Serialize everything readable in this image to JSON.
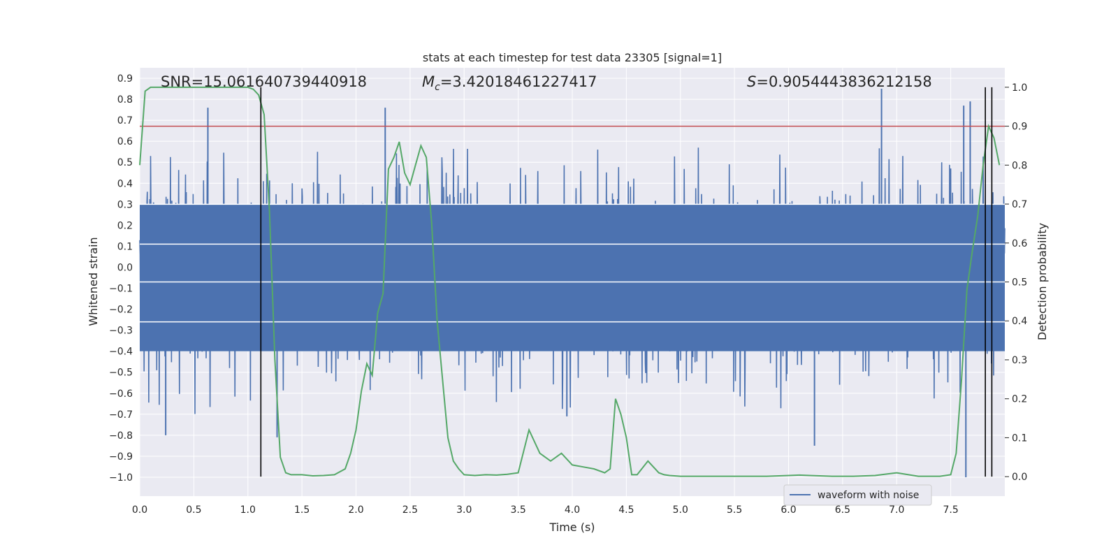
{
  "chart_data": {
    "type": "line",
    "title": "stats at each timestep for test data 23305 [signal=1]",
    "xlabel": "Time (s)",
    "ylabel_left": "Whitened strain",
    "ylabel_right": "Detection probability",
    "xlim": [
      0.0,
      8.0
    ],
    "ylim_left": [
      -1.09,
      0.95
    ],
    "ylim_right": [
      -0.05,
      1.05
    ],
    "x_ticks": [
      "0.0",
      "0.5",
      "1.0",
      "1.5",
      "2.0",
      "2.5",
      "3.0",
      "3.5",
      "4.0",
      "4.5",
      "5.0",
      "5.5",
      "6.0",
      "6.5",
      "7.0",
      "7.5"
    ],
    "y_ticks_left": [
      "0.9",
      "0.8",
      "0.7",
      "0.6",
      "0.5",
      "0.4",
      "0.3",
      "0.2",
      "0.1",
      "0.0",
      "−0.1",
      "−0.2",
      "−0.3",
      "−0.4",
      "−0.5",
      "−0.6",
      "−0.7",
      "−0.8",
      "−0.9",
      "−1.0"
    ],
    "y_ticks_right": [
      "1.0",
      "0.9",
      "0.8",
      "0.7",
      "0.6",
      "0.5",
      "0.4",
      "0.3",
      "0.2",
      "0.1",
      "0.0"
    ],
    "grid": true,
    "background": "#eaeaf2",
    "annotations": {
      "snr": "SNR=15.061640739440918",
      "mc_symbol": "M",
      "mc_subscript": "c",
      "mc_value": "=3.42018461227417",
      "s_symbol": "S",
      "s_value": "=0.9054443836212158"
    },
    "legend": {
      "label": "waveform with noise",
      "position": "lower-right"
    },
    "colors": {
      "waveform": "#4c72b0",
      "probability": "#55a868",
      "threshold": "#c44e52",
      "markers": "#000000"
    },
    "threshold_right": 0.9,
    "vertical_markers_x": [
      1.12,
      7.82,
      7.88
    ],
    "series": [
      {
        "name": "waveform with noise",
        "axis": "left",
        "sample_rate_hz": 2048,
        "envelope_bulk": [
          -0.4,
          0.3
        ],
        "spike_peaks": [
          {
            "x": 0.63,
            "y": 0.76
          },
          {
            "x": 2.27,
            "y": 0.76
          },
          {
            "x": 6.86,
            "y": 0.85
          },
          {
            "x": 7.62,
            "y": 0.77
          },
          {
            "x": 7.68,
            "y": 0.79
          },
          {
            "x": 0.24,
            "y": -0.8
          },
          {
            "x": 1.27,
            "y": -0.81
          },
          {
            "x": 6.24,
            "y": -0.85
          },
          {
            "x": 7.64,
            "y": -1.0
          },
          {
            "x": 3.95,
            "y": -0.71
          }
        ]
      },
      {
        "name": "",
        "axis": "right",
        "x": [
          0.0,
          0.05,
          0.1,
          0.2,
          0.3,
          0.5,
          0.7,
          0.9,
          1.0,
          1.05,
          1.1,
          1.15,
          1.2,
          1.25,
          1.3,
          1.35,
          1.4,
          1.5,
          1.6,
          1.7,
          1.8,
          1.9,
          1.95,
          2.0,
          2.05,
          2.1,
          2.15,
          2.2,
          2.25,
          2.3,
          2.35,
          2.4,
          2.45,
          2.5,
          2.55,
          2.6,
          2.65,
          2.7,
          2.75,
          2.8,
          2.85,
          2.9,
          2.95,
          3.0,
          3.1,
          3.2,
          3.3,
          3.4,
          3.5,
          3.6,
          3.7,
          3.8,
          3.9,
          4.0,
          4.1,
          4.2,
          4.3,
          4.35,
          4.4,
          4.45,
          4.5,
          4.55,
          4.6,
          4.7,
          4.8,
          4.85,
          4.9,
          5.0,
          5.2,
          5.4,
          5.6,
          5.8,
          6.0,
          6.1,
          6.2,
          6.4,
          6.6,
          6.8,
          7.0,
          7.2,
          7.4,
          7.5,
          7.55,
          7.6,
          7.65,
          7.7,
          7.75,
          7.8,
          7.85,
          7.9,
          7.95
        ],
        "y": [
          0.8,
          0.99,
          1.0,
          1.0,
          1.0,
          1.0,
          1.0,
          1.0,
          1.0,
          0.995,
          0.98,
          0.93,
          0.68,
          0.3,
          0.05,
          0.01,
          0.005,
          0.005,
          0.002,
          0.003,
          0.005,
          0.02,
          0.06,
          0.12,
          0.22,
          0.29,
          0.26,
          0.42,
          0.47,
          0.79,
          0.82,
          0.86,
          0.78,
          0.75,
          0.8,
          0.85,
          0.82,
          0.65,
          0.4,
          0.25,
          0.1,
          0.04,
          0.02,
          0.005,
          0.003,
          0.005,
          0.004,
          0.006,
          0.01,
          0.12,
          0.06,
          0.04,
          0.06,
          0.03,
          0.025,
          0.02,
          0.01,
          0.02,
          0.2,
          0.16,
          0.1,
          0.005,
          0.005,
          0.04,
          0.01,
          0.005,
          0.003,
          0.001,
          0.001,
          0.001,
          0.001,
          0.001,
          0.003,
          0.004,
          0.003,
          0.001,
          0.001,
          0.003,
          0.01,
          0.001,
          0.001,
          0.005,
          0.06,
          0.25,
          0.48,
          0.58,
          0.67,
          0.8,
          0.9,
          0.87,
          0.8
        ]
      }
    ]
  }
}
